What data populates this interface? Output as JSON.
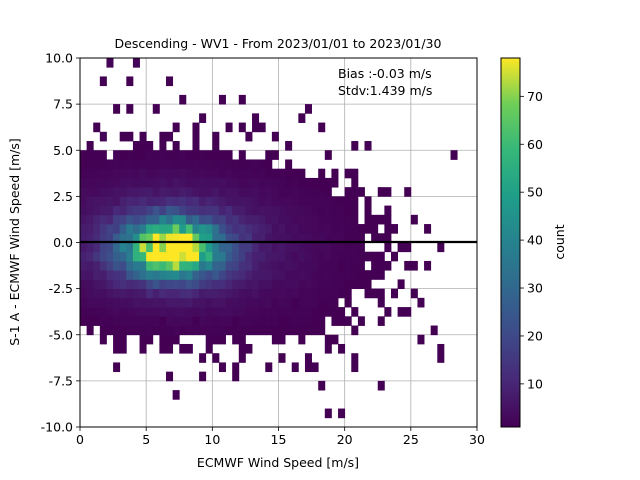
{
  "chart_data": {
    "type": "heatmap",
    "title": "Descending - WV1 - From 2023/01/01 to 2023/01/30",
    "xlabel": "ECMWF Wind Speed [m/s]",
    "ylabel": "S-1 A - ECMWF Wind Speed [m/s]",
    "xlim": [
      0,
      30
    ],
    "ylim": [
      -10,
      10
    ],
    "x_ticks": [
      "0",
      "5",
      "10",
      "15",
      "20",
      "25",
      "30"
    ],
    "y_ticks": [
      "-10.0",
      "-7.5",
      "-5.0",
      "-2.5",
      "0.0",
      "2.5",
      "5.0",
      "7.5",
      "10.0"
    ],
    "grid": true,
    "reference_line_y": 0,
    "annotations": [
      "Bias :-0.03 m/s",
      "Stdv:1.439 m/s"
    ],
    "colorbar": {
      "label": "count",
      "range": [
        1,
        78
      ],
      "ticks": [
        "10",
        "20",
        "30",
        "40",
        "50",
        "60",
        "70"
      ],
      "colormap": "viridis"
    },
    "bin_width": [
      0.5,
      0.5
    ],
    "bin_value_semantics": "count per 2D bin; value is approximate",
    "bins": [
      {
        "x": 2.0,
        "y": 9.5,
        "count": 2
      },
      {
        "x": 4.0,
        "y": 9.5,
        "count": 2
      },
      {
        "x": 1.5,
        "y": 8.5,
        "count": 1
      },
      {
        "x": 3.5,
        "y": 8.5,
        "count": 1
      },
      {
        "x": 6.5,
        "y": 8.5,
        "count": 1
      },
      {
        "x": 7.5,
        "y": 7.5,
        "count": 1
      },
      {
        "x": 10.5,
        "y": 7.5,
        "count": 1
      },
      {
        "x": 2.5,
        "y": 7.0,
        "count": 1
      },
      {
        "x": 3.5,
        "y": 7.0,
        "count": 1
      },
      {
        "x": 1.0,
        "y": 6.0,
        "count": 1
      },
      {
        "x": 1.5,
        "y": 5.5,
        "count": 2
      },
      {
        "x": 3.0,
        "y": 5.5,
        "count": 1
      },
      {
        "x": 4.5,
        "y": 5.5,
        "count": 1
      },
      {
        "x": 7.0,
        "y": 6.0,
        "count": 1
      },
      {
        "x": 8.5,
        "y": 6.0,
        "count": 1
      },
      {
        "x": 13.0,
        "y": 6.5,
        "count": 1
      },
      {
        "x": 0.5,
        "y": 4.5,
        "count": 1
      },
      {
        "x": 2.5,
        "y": 4.5,
        "count": 2
      },
      {
        "x": 5.0,
        "y": 5.0,
        "count": 1
      },
      {
        "x": 9.5,
        "y": 4.5,
        "count": 1
      },
      {
        "x": 12.0,
        "y": 4.5,
        "count": 1
      },
      {
        "x": 14.0,
        "y": 4.5,
        "count": 1
      },
      {
        "x": 19.0,
        "y": 3.0,
        "count": 1
      },
      {
        "x": 20.0,
        "y": 1.5,
        "count": 1
      },
      {
        "x": 21.0,
        "y": 0.5,
        "count": 1
      },
      {
        "x": 19.5,
        "y": -1.5,
        "count": 1
      },
      {
        "x": 22.0,
        "y": -1.0,
        "count": 1
      },
      {
        "x": 22.5,
        "y": -2.0,
        "count": 1
      },
      {
        "x": 24.5,
        "y": -1.5,
        "count": 1
      },
      {
        "x": 24.0,
        "y": -2.5,
        "count": 1
      },
      {
        "x": 25.0,
        "y": -3.0,
        "count": 1
      },
      {
        "x": 25.5,
        "y": -3.5,
        "count": 1
      },
      {
        "x": 21.5,
        "y": -3.0,
        "count": 1
      },
      {
        "x": 26.5,
        "y": -5.0,
        "count": 1
      },
      {
        "x": 27.0,
        "y": -6.0,
        "count": 1
      },
      {
        "x": 17.0,
        "y": -7.0,
        "count": 1
      },
      {
        "x": 17.5,
        "y": -7.0,
        "count": 1
      },
      {
        "x": 22.5,
        "y": -8.0,
        "count": 1
      },
      {
        "x": 18.5,
        "y": -9.5,
        "count": 1
      },
      {
        "x": 19.5,
        "y": -9.5,
        "count": 1
      },
      {
        "x": 10.0,
        "y": -6.5,
        "count": 1
      },
      {
        "x": 9.5,
        "y": -6.0,
        "count": 1
      },
      {
        "x": 14.5,
        "y": -5.5,
        "count": 1
      },
      {
        "x": 16.5,
        "y": -5.5,
        "count": 1
      },
      {
        "x": 12.0,
        "y": -5.5,
        "count": 1
      },
      {
        "x": 6.0,
        "y": -4.5,
        "count": 1
      },
      {
        "x": 7.5,
        "y": -5.0,
        "count": 1
      },
      {
        "x": 11.5,
        "y": -4.5,
        "count": 1
      },
      {
        "x": 13.0,
        "y": -5.0,
        "count": 1
      },
      {
        "x": 15.0,
        "y": -4.5,
        "count": 1
      },
      {
        "x": 8.5,
        "y": -4.5,
        "count": 1
      },
      {
        "x": 18.0,
        "y": -3.5,
        "count": 1
      },
      {
        "x": 16.0,
        "y": -3.5,
        "count": 1
      }
    ]
  }
}
